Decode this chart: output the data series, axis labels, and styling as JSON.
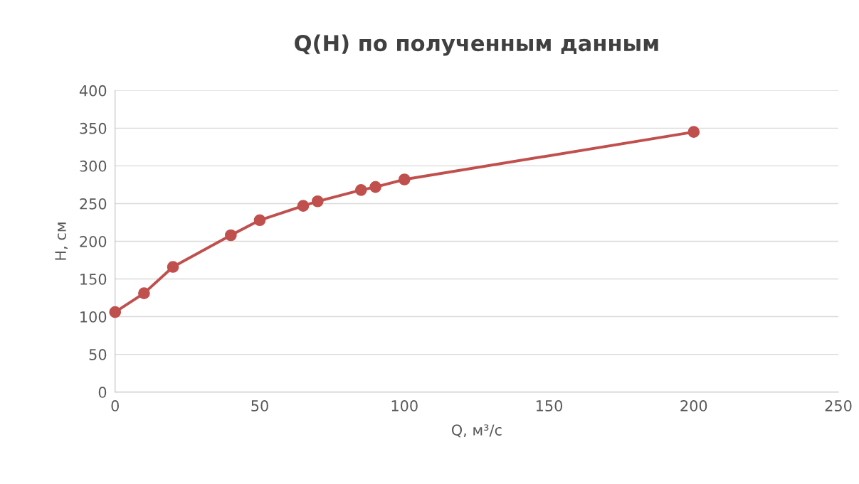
{
  "chart_data": {
    "type": "line",
    "title": "Q(H) по полученным данным",
    "xlabel": "Q, м³/с",
    "ylabel": "H, см",
    "x": [
      0,
      10,
      20,
      40,
      50,
      65,
      70,
      85,
      90,
      100,
      200
    ],
    "series": [
      {
        "color": "#c0504d",
        "values": [
          106,
          131,
          166,
          208,
          228,
          247,
          253,
          268,
          272,
          282,
          345
        ]
      }
    ],
    "xlim": [
      0,
      250
    ],
    "xticks": [
      0,
      50,
      100,
      150,
      200,
      250
    ],
    "ylim": [
      0,
      400
    ],
    "yticks": [
      0,
      50,
      100,
      150,
      200,
      250,
      300,
      350,
      400
    ],
    "grid": "y",
    "marker": "circle",
    "line_style": "solid",
    "legend": false
  }
}
